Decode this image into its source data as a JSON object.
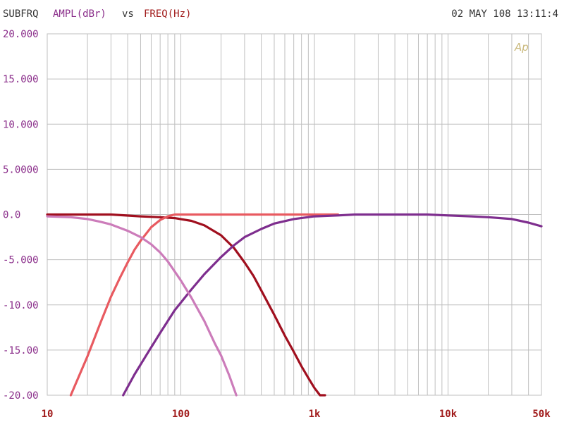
{
  "header": {
    "prefix": "SUBFRQ",
    "ylabel": "AMPL(dBr)",
    "vs": "vs",
    "xlabel": "FREQ(Hz)",
    "timestamp": "02 MAY 108 13:11:4"
  },
  "watermark": "Ap",
  "colors": {
    "grid": "#bfbfbf",
    "ylabel": "#8a2d8a",
    "xlabel": "#a01a1a",
    "prefix": "#333333",
    "watermark": "#c9b87a"
  },
  "chart_data": {
    "type": "line",
    "xscale": "log",
    "xlim": [
      10,
      50000
    ],
    "ylim": [
      -20,
      20
    ],
    "grid": true,
    "title": "",
    "xlabel": "FREQ(Hz)",
    "ylabel": "AMPL(dBr)",
    "x_ticks": [
      {
        "value": 10,
        "label": "10"
      },
      {
        "value": 100,
        "label": "100"
      },
      {
        "value": 1000,
        "label": "1k"
      },
      {
        "value": 10000,
        "label": "10k"
      },
      {
        "value": 50000,
        "label": "50k"
      }
    ],
    "y_ticks": [
      {
        "value": 20,
        "label": "20.000"
      },
      {
        "value": 15,
        "label": "15.000"
      },
      {
        "value": 10,
        "label": "10.000"
      },
      {
        "value": 5,
        "label": "5.0000"
      },
      {
        "value": 0,
        "label": "0.0"
      },
      {
        "value": -5,
        "label": "-5.000"
      },
      {
        "value": -10,
        "label": "-10.00"
      },
      {
        "value": -15,
        "label": "-15.00"
      },
      {
        "value": -20,
        "label": "-20.00"
      }
    ],
    "series": [
      {
        "color": "#a00f1e",
        "x": [
          10,
          20,
          30,
          50,
          70,
          90,
          120,
          150,
          200,
          250,
          300,
          350,
          400,
          500,
          600,
          700,
          800,
          900,
          1000,
          1100,
          1200
        ],
        "y": [
          0,
          0,
          0,
          -0.2,
          -0.3,
          -0.4,
          -0.7,
          -1.2,
          -2.3,
          -3.7,
          -5.3,
          -6.8,
          -8.4,
          -11.1,
          -13.4,
          -15.2,
          -16.8,
          -18.1,
          -19.2,
          -20.0,
          -20.0
        ]
      },
      {
        "color": "#e85a60",
        "x": [
          15,
          20,
          25,
          30,
          35,
          40,
          45,
          50,
          60,
          70,
          80,
          90,
          100,
          200,
          500,
          1000,
          1500
        ],
        "y": [
          -20,
          -15.7,
          -12.0,
          -9.1,
          -7.0,
          -5.3,
          -3.9,
          -2.9,
          -1.4,
          -0.6,
          -0.2,
          0,
          0,
          0,
          0,
          0,
          0
        ]
      },
      {
        "color": "#7e2e8e",
        "x": [
          37,
          45,
          55,
          70,
          90,
          120,
          150,
          200,
          250,
          300,
          400,
          500,
          700,
          1000,
          1500,
          2000,
          3000,
          5000,
          7000,
          10000,
          15000,
          20000,
          30000,
          40000,
          50000
        ],
        "y": [
          -20,
          -17.7,
          -15.6,
          -13.1,
          -10.6,
          -8.3,
          -6.6,
          -4.7,
          -3.4,
          -2.5,
          -1.6,
          -1.0,
          -0.5,
          -0.2,
          -0.1,
          0,
          0,
          0,
          0,
          -0.1,
          -0.2,
          -0.3,
          -0.5,
          -0.9,
          -1.3
        ]
      },
      {
        "color": "#cc7cba",
        "x": [
          10,
          15,
          20,
          25,
          30,
          40,
          50,
          60,
          70,
          80,
          90,
          100,
          120,
          150,
          180,
          200,
          230,
          260
        ],
        "y": [
          -0.2,
          -0.3,
          -0.5,
          -0.8,
          -1.1,
          -1.8,
          -2.5,
          -3.3,
          -4.2,
          -5.2,
          -6.3,
          -7.3,
          -9.2,
          -11.8,
          -14.3,
          -15.6,
          -17.8,
          -20.0
        ]
      }
    ]
  }
}
